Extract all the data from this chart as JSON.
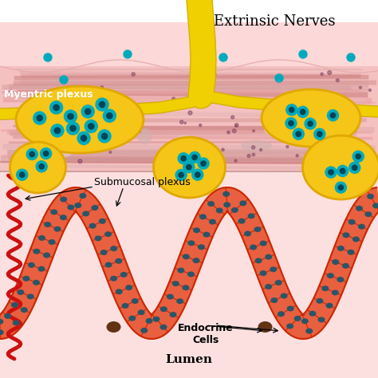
{
  "bg_color": "#ffffff",
  "top_bg": "#fce8e8",
  "bottom_bg": "#fad8d8",
  "muscle_bg": "#f0b8b8",
  "pink_layer_top": "#fad0d0",
  "yellow_ganglion": "#f5c518",
  "ganglion_outline": "#e0a800",
  "cyan_dot": "#00aabb",
  "nerve_yellow": "#f0d000",
  "epithelium_fill": "#e85030",
  "epithelium_inner": "#f07858",
  "cell_outline": "#cc2800",
  "cell_nucleus": "#2a5568",
  "endocrine_cell": "#5a2808",
  "blood_vessel": "#cc1010",
  "label_extrinsic": "Extrinsic Nerves",
  "label_myenteric": "Myentric plexus",
  "label_submucosal": "Submucosal plexus",
  "label_endocrine": "Endocrine\nCells",
  "label_lumen": "Lumen"
}
